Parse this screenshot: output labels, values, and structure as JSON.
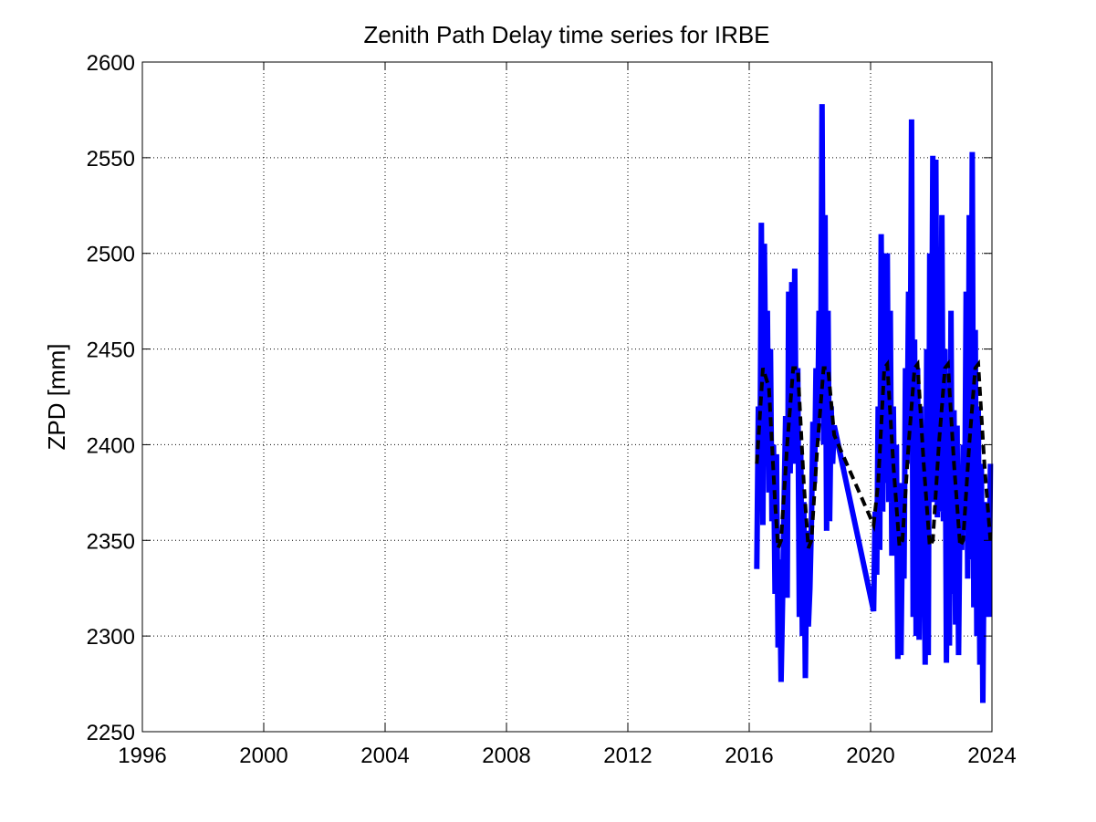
{
  "chart_data": {
    "type": "line",
    "title": "Zenith Path Delay time series for IRBE",
    "xlabel": "",
    "ylabel": "ZPD [mm]",
    "xlim": [
      1996,
      2024
    ],
    "ylim": [
      2250,
      2600
    ],
    "x_ticks": [
      "1996",
      "2000",
      "2004",
      "2008",
      "2012",
      "2016",
      "2020",
      "2024"
    ],
    "y_ticks": [
      "2250",
      "2300",
      "2350",
      "2400",
      "2450",
      "2500",
      "2550",
      "2600"
    ],
    "grid": true,
    "legend": "none",
    "colors": {
      "data": "#0000ff",
      "model": "#000000"
    },
    "series": [
      {
        "style": "solid blue thick",
        "x": [
          2016.25,
          2016.3,
          2016.35,
          2016.4,
          2016.45,
          2016.5,
          2016.55,
          2016.6,
          2016.65,
          2016.7,
          2016.75,
          2016.8,
          2016.85,
          2016.9,
          2016.95,
          2017.0,
          2017.05,
          2017.1,
          2017.15,
          2017.2,
          2017.25,
          2017.3,
          2017.35,
          2017.4,
          2017.45,
          2017.5,
          2017.55,
          2017.6,
          2017.65,
          2017.7,
          2017.75,
          2017.8,
          2017.85,
          2017.9,
          2017.95,
          2018.0,
          2018.05,
          2018.1,
          2018.15,
          2018.2,
          2018.25,
          2018.3,
          2018.35,
          2018.4,
          2018.45,
          2018.5,
          2018.55,
          2018.6,
          2018.65,
          2018.7,
          2018.75,
          2018.8,
          2020.1,
          2020.15,
          2020.2,
          2020.25,
          2020.3,
          2020.35,
          2020.4,
          2020.45,
          2020.5,
          2020.55,
          2020.6,
          2020.65,
          2020.7,
          2020.75,
          2020.8,
          2020.85,
          2020.9,
          2020.95,
          2021.0,
          2021.05,
          2021.1,
          2021.15,
          2021.2,
          2021.25,
          2021.3,
          2021.35,
          2021.4,
          2021.45,
          2021.5,
          2021.55,
          2021.6,
          2021.65,
          2021.7,
          2021.75,
          2021.8,
          2021.85,
          2021.9,
          2021.95,
          2022.0,
          2022.05,
          2022.1,
          2022.15,
          2022.2,
          2022.25,
          2022.3,
          2022.35,
          2022.4,
          2022.45,
          2022.5,
          2022.55,
          2022.6,
          2022.65,
          2022.7,
          2022.75,
          2022.8,
          2022.85,
          2022.9,
          2022.95,
          2023.0,
          2023.05,
          2023.1,
          2023.15,
          2023.2,
          2023.25,
          2023.3,
          2023.35,
          2023.4,
          2023.45,
          2023.5,
          2023.55,
          2023.6,
          2023.65,
          2023.7,
          2023.75,
          2023.8,
          2023.85,
          2023.9,
          2023.95
        ],
        "y": [
          2335,
          2420,
          2370,
          2516,
          2358,
          2505,
          2420,
          2470,
          2375,
          2450,
          2360,
          2400,
          2322,
          2395,
          2294,
          2340,
          2276,
          2320,
          2370,
          2415,
          2320,
          2480,
          2385,
          2485,
          2390,
          2492,
          2395,
          2440,
          2310,
          2395,
          2300,
          2370,
          2278,
          2355,
          2305,
          2325,
          2360,
          2412,
          2380,
          2440,
          2402,
          2470,
          2415,
          2578,
          2400,
          2520,
          2355,
          2470,
          2360,
          2420,
          2390,
          2410,
          2313,
          2365,
          2332,
          2420,
          2345,
          2510,
          2365,
          2500,
          2380,
          2500,
          2370,
          2470,
          2342,
          2420,
          2350,
          2400,
          2288,
          2380,
          2290,
          2360,
          2330,
          2440,
          2390,
          2480,
          2400,
          2570,
          2310,
          2455,
          2300,
          2440,
          2298,
          2420,
          2330,
          2380,
          2285,
          2450,
          2290,
          2500,
          2400,
          2551,
          2370,
          2549,
          2362,
          2470,
          2365,
          2520,
          2360,
          2450,
          2286,
          2390,
          2295,
          2470,
          2322,
          2418,
          2306,
          2410,
          2290,
          2375,
          2345,
          2400,
          2360,
          2480,
          2330,
          2520,
          2340,
          2553,
          2315,
          2460,
          2300,
          2420,
          2285,
          2390,
          2265,
          2370,
          2340,
          2360,
          2310,
          2390
        ]
      },
      {
        "style": "dashed black",
        "x": [
          2016.25,
          2016.45,
          2016.65,
          2016.85,
          2016.95,
          2017.05,
          2017.25,
          2017.45,
          2017.6,
          2017.8,
          2017.95,
          2018.05,
          2018.25,
          2018.45,
          2018.6,
          2018.8,
          2020.1,
          2020.25,
          2020.45,
          2020.55,
          2020.75,
          2020.95,
          2021.05,
          2021.25,
          2021.45,
          2021.55,
          2021.75,
          2021.95,
          2022.05,
          2022.25,
          2022.45,
          2022.55,
          2022.75,
          2022.95,
          2023.05,
          2023.25,
          2023.45,
          2023.55,
          2023.75,
          2023.95
        ],
        "y": [
          2390,
          2440,
          2430,
          2370,
          2346,
          2350,
          2400,
          2440,
          2440,
          2380,
          2346,
          2350,
          2400,
          2440,
          2440,
          2405,
          2358,
          2380,
          2440,
          2442,
          2390,
          2347,
          2350,
          2400,
          2440,
          2442,
          2390,
          2347,
          2350,
          2400,
          2440,
          2442,
          2390,
          2347,
          2350,
          2400,
          2440,
          2442,
          2390,
          2350
        ]
      }
    ]
  }
}
